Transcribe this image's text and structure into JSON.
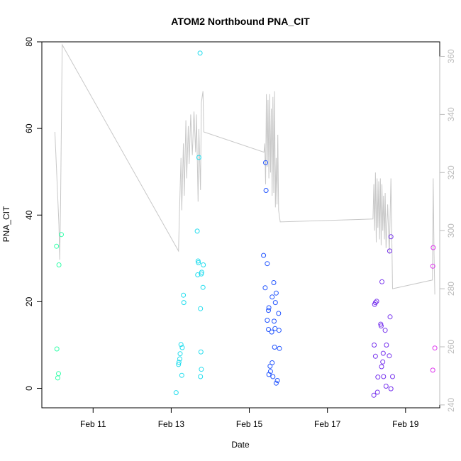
{
  "chart_data": {
    "type": "scatter",
    "title": "ATOM2 Northbound PNA_CIT",
    "xlabel": "Date",
    "ylabel": "PNA_CIT",
    "x_ticks": [
      "Feb 11",
      "Feb 13",
      "Feb 15",
      "Feb 17",
      "Feb 19"
    ],
    "y_ticks": [
      "0",
      "20",
      "40",
      "60",
      "80"
    ],
    "y2_ticks": [
      "240",
      "260",
      "280",
      "300",
      "320",
      "340",
      "360"
    ],
    "xlim": [
      "2016-02-09T16:30",
      "2016-02-19T21:00"
    ],
    "ylim": [
      -4.5,
      80
    ],
    "y2lim": [
      239,
      365
    ],
    "y2_color": "#bbbbbb",
    "line_color": "#c8c8c8",
    "series": [
      {
        "color": "#33ffaa",
        "points": [
          [
            "2016-02-10T01:30",
            32.8
          ],
          [
            "2016-02-10T03:00",
            28.5
          ],
          [
            "2016-02-10T04:30",
            35.5
          ],
          [
            "2016-02-10T01:45",
            9.1
          ],
          [
            "2016-02-10T02:45",
            3.4
          ],
          [
            "2016-02-10T02:15",
            2.4
          ]
        ]
      },
      {
        "color": "#22ddee",
        "points": [
          [
            "2016-02-13T17:45",
            77.4
          ],
          [
            "2016-02-13T17:00",
            53.3
          ],
          [
            "2016-02-13T16:00",
            36.3
          ],
          [
            "2016-02-13T16:30",
            29.4
          ],
          [
            "2016-02-13T16:45",
            29.0
          ],
          [
            "2016-02-13T19:45",
            28.5
          ],
          [
            "2016-02-13T18:45",
            26.8
          ],
          [
            "2016-02-13T18:30",
            26.4
          ],
          [
            "2016-02-13T16:15",
            26.2
          ],
          [
            "2016-02-13T19:30",
            23.3
          ],
          [
            "2016-02-13T07:30",
            21.5
          ],
          [
            "2016-02-13T07:45",
            19.8
          ],
          [
            "2016-02-13T18:00",
            18.4
          ],
          [
            "2016-02-13T06:00",
            10.1
          ],
          [
            "2016-02-13T06:45",
            9.4
          ],
          [
            "2016-02-13T18:15",
            8.4
          ],
          [
            "2016-02-13T05:30",
            8.0
          ],
          [
            "2016-02-13T05:15",
            6.8
          ],
          [
            "2016-02-13T04:45",
            6.0
          ],
          [
            "2016-02-13T04:30",
            5.5
          ],
          [
            "2016-02-13T18:30",
            4.4
          ],
          [
            "2016-02-13T06:30",
            3.0
          ],
          [
            "2016-02-13T18:00",
            2.7
          ],
          [
            "2016-02-13T03:00",
            -1.0
          ]
        ]
      },
      {
        "color": "#2255ff",
        "points": [
          [
            "2016-02-15T10:00",
            52.1
          ],
          [
            "2016-02-15T10:15",
            45.7
          ],
          [
            "2016-02-15T08:45",
            30.7
          ],
          [
            "2016-02-15T11:00",
            28.8
          ],
          [
            "2016-02-15T15:00",
            24.4
          ],
          [
            "2016-02-15T09:45",
            23.2
          ],
          [
            "2016-02-15T16:30",
            22.0
          ],
          [
            "2016-02-15T14:00",
            21.1
          ],
          [
            "2016-02-15T16:00",
            19.8
          ],
          [
            "2016-02-15T12:00",
            18.6
          ],
          [
            "2016-02-15T11:45",
            18.0
          ],
          [
            "2016-02-15T18:00",
            17.3
          ],
          [
            "2016-02-15T11:00",
            15.7
          ],
          [
            "2016-02-15T15:15",
            15.5
          ],
          [
            "2016-02-15T15:45",
            13.8
          ],
          [
            "2016-02-15T11:45",
            13.6
          ],
          [
            "2016-02-15T18:15",
            13.4
          ],
          [
            "2016-02-15T13:45",
            13.0
          ],
          [
            "2016-02-15T15:30",
            9.5
          ],
          [
            "2016-02-15T18:30",
            9.2
          ],
          [
            "2016-02-15T14:00",
            5.9
          ],
          [
            "2016-02-15T12:45",
            5.1
          ],
          [
            "2016-02-15T13:00",
            3.9
          ],
          [
            "2016-02-15T12:00",
            3.2
          ],
          [
            "2016-02-15T14:30",
            2.7
          ],
          [
            "2016-02-15T17:15",
            1.8
          ],
          [
            "2016-02-15T16:30",
            1.2
          ]
        ]
      },
      {
        "color": "#7733ee",
        "points": [
          [
            "2016-02-18T15:00",
            35.0
          ],
          [
            "2016-02-18T14:15",
            31.7
          ],
          [
            "2016-02-18T09:30",
            24.6
          ],
          [
            "2016-02-18T06:15",
            20.1
          ],
          [
            "2016-02-18T05:30",
            19.8
          ],
          [
            "2016-02-18T05:00",
            19.4
          ],
          [
            "2016-02-18T14:30",
            16.5
          ],
          [
            "2016-02-18T08:45",
            14.8
          ],
          [
            "2016-02-18T09:00",
            14.4
          ],
          [
            "2016-02-18T11:30",
            13.4
          ],
          [
            "2016-02-18T04:45",
            10.0
          ],
          [
            "2016-02-18T12:15",
            10.0
          ],
          [
            "2016-02-18T10:15",
            8.1
          ],
          [
            "2016-02-18T14:00",
            7.5
          ],
          [
            "2016-02-18T05:30",
            7.4
          ],
          [
            "2016-02-18T10:00",
            6.1
          ],
          [
            "2016-02-18T09:15",
            5.0
          ],
          [
            "2016-02-18T07:00",
            2.6
          ],
          [
            "2016-02-18T10:30",
            2.7
          ],
          [
            "2016-02-18T16:00",
            2.7
          ],
          [
            "2016-02-18T12:00",
            0.5
          ],
          [
            "2016-02-18T15:00",
            -0.1
          ],
          [
            "2016-02-18T06:45",
            -0.9
          ],
          [
            "2016-02-18T04:30",
            -1.6
          ]
        ]
      },
      {
        "color": "#dd33ee",
        "points": [
          [
            "2016-02-19T17:00",
            32.5
          ],
          [
            "2016-02-19T16:45",
            28.2
          ],
          [
            "2016-02-19T18:00",
            9.3
          ],
          [
            "2016-02-19T16:45",
            4.2
          ]
        ]
      }
    ],
    "line": {
      "axis": "right",
      "points": [
        [
          "2016-02-10T00:30",
          334
        ],
        [
          "2016-02-10T03:00",
          302
        ],
        [
          "2016-02-10T03:30",
          290
        ],
        [
          "2016-02-10T04:00",
          309
        ],
        [
          "2016-02-10T05:00",
          364
        ],
        [
          "2016-02-13T04:30",
          293
        ],
        [
          "2016-02-13T05:00",
          305
        ],
        [
          "2016-02-13T06:00",
          325
        ],
        [
          "2016-02-13T06:30",
          307
        ],
        [
          "2016-02-13T07:30",
          330
        ],
        [
          "2016-02-13T08:00",
          312
        ],
        [
          "2016-02-13T09:00",
          338
        ],
        [
          "2016-02-13T09:30",
          318
        ],
        [
          "2016-02-13T10:30",
          336
        ],
        [
          "2016-02-13T11:00",
          323
        ],
        [
          "2016-02-13T12:00",
          340
        ],
        [
          "2016-02-13T13:00",
          326
        ],
        [
          "2016-02-13T14:00",
          341
        ],
        [
          "2016-02-13T15:00",
          327
        ],
        [
          "2016-02-13T15:30",
          340
        ],
        [
          "2016-02-13T16:30",
          310
        ],
        [
          "2016-02-13T17:00",
          335
        ],
        [
          "2016-02-13T18:00",
          314
        ],
        [
          "2016-02-13T18:30",
          344
        ],
        [
          "2016-02-13T19:00",
          346
        ],
        [
          "2016-02-13T19:30",
          348
        ],
        [
          "2016-02-13T20:00",
          334
        ],
        [
          "2016-02-15T09:00",
          327
        ],
        [
          "2016-02-15T09:30",
          330
        ],
        [
          "2016-02-15T10:00",
          316
        ],
        [
          "2016-02-15T10:30",
          347
        ],
        [
          "2016-02-15T11:00",
          322
        ],
        [
          "2016-02-15T11:30",
          345
        ],
        [
          "2016-02-15T12:00",
          318
        ],
        [
          "2016-02-15T12:30",
          347
        ],
        [
          "2016-02-15T13:00",
          320
        ],
        [
          "2016-02-15T13:30",
          342
        ],
        [
          "2016-02-15T14:00",
          312
        ],
        [
          "2016-02-15T14:30",
          346
        ],
        [
          "2016-02-15T15:00",
          313
        ],
        [
          "2016-02-15T15:30",
          348
        ],
        [
          "2016-02-15T16:00",
          308
        ],
        [
          "2016-02-15T16:30",
          325
        ],
        [
          "2016-02-15T17:00",
          309
        ],
        [
          "2016-02-15T17:30",
          333
        ],
        [
          "2016-02-15T18:00",
          307
        ],
        [
          "2016-02-15T19:00",
          303
        ],
        [
          "2016-02-18T04:00",
          304
        ],
        [
          "2016-02-18T04:30",
          316
        ],
        [
          "2016-02-18T05:00",
          300
        ],
        [
          "2016-02-18T05:30",
          320
        ],
        [
          "2016-02-18T06:00",
          296
        ],
        [
          "2016-02-18T06:30",
          318
        ],
        [
          "2016-02-18T07:00",
          301
        ],
        [
          "2016-02-18T07:30",
          317
        ],
        [
          "2016-02-18T08:00",
          297
        ],
        [
          "2016-02-18T08:30",
          318
        ],
        [
          "2016-02-18T09:00",
          295
        ],
        [
          "2016-02-18T09:30",
          316
        ],
        [
          "2016-02-18T10:00",
          300
        ],
        [
          "2016-02-18T10:30",
          312
        ],
        [
          "2016-02-18T11:00",
          297
        ],
        [
          "2016-02-18T11:30",
          313
        ],
        [
          "2016-02-18T12:00",
          294
        ],
        [
          "2016-02-18T13:00",
          309
        ],
        [
          "2016-02-18T14:00",
          292
        ],
        [
          "2016-02-18T15:00",
          318
        ],
        [
          "2016-02-18T16:00",
          280
        ],
        [
          "2016-02-19T16:30",
          283
        ],
        [
          "2016-02-19T17:00",
          318
        ],
        [
          "2016-02-19T17:30",
          292
        ],
        [
          "2016-02-19T18:00",
          278
        ]
      ]
    },
    "grid": false,
    "legend": "none"
  }
}
